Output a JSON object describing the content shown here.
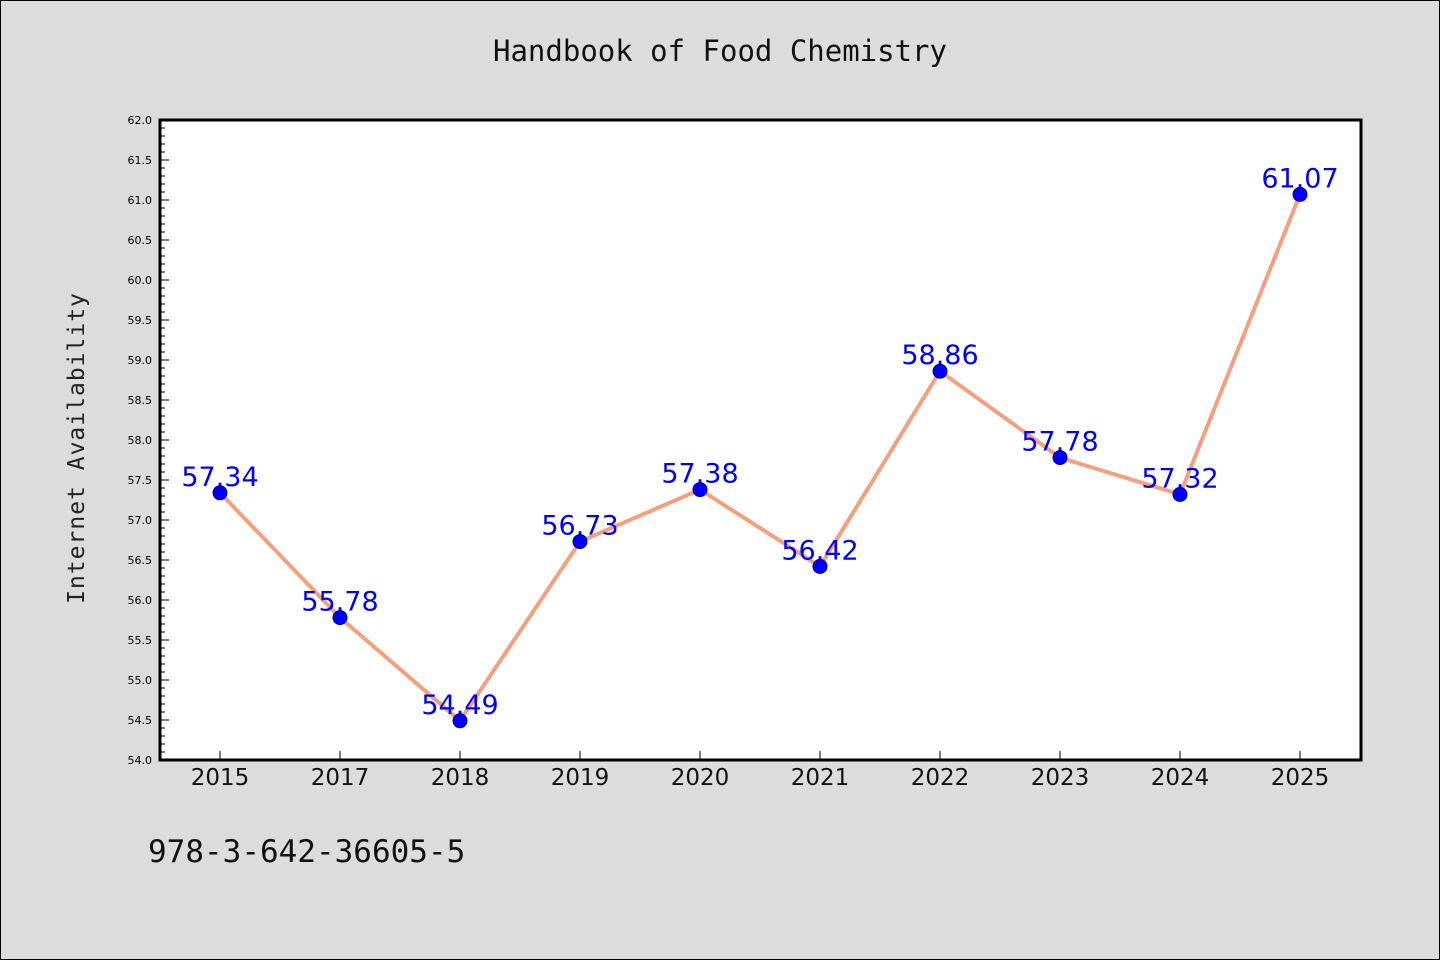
{
  "chart_data": {
    "type": "line",
    "title": "Handbook of Food Chemistry",
    "ylabel": "Internet Availability",
    "xlabel": "",
    "categories": [
      "2015",
      "2017",
      "2018",
      "2019",
      "2020",
      "2021",
      "2022",
      "2023",
      "2024",
      "2025"
    ],
    "series": [
      {
        "values": [
          57.34,
          55.78,
          54.49,
          56.73,
          57.38,
          56.42,
          58.86,
          57.78,
          57.32,
          61.07
        ],
        "data_labels": [
          "57.34",
          "55.78",
          "54.49",
          "56.73",
          "57.38",
          "56.42",
          "58.86",
          "57.78",
          "57.32",
          "61.07"
        ]
      }
    ],
    "ylim": [
      54.0,
      62.0
    ],
    "y_ticks": [
      "54.0",
      "54.5",
      "55.0",
      "55.5",
      "56.0",
      "56.5",
      "57.0",
      "57.5",
      "58.0",
      "58.5",
      "59.0",
      "59.5",
      "60.0",
      "60.5",
      "61.0",
      "61.5",
      "62.0"
    ],
    "grid": false,
    "legend": "none",
    "colors": {
      "line": "#f4a07e",
      "marker": "#0000ff",
      "marker_edge": "#00008b",
      "data_label": "#0000ff",
      "plot_background": "#ffffff",
      "figure_background": "#dcdcdc"
    }
  },
  "footer": {
    "isbn": "978-3-642-36605-5"
  }
}
